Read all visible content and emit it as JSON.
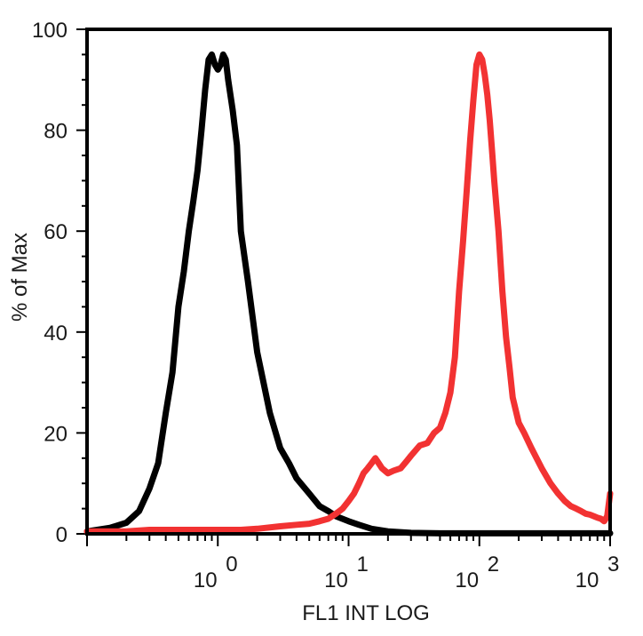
{
  "chart_data": {
    "type": "line",
    "title": "",
    "xlabel": "FL1 INT LOG",
    "ylabel": "% of Max",
    "x_scale": "log",
    "xlim": [
      0.1,
      1000
    ],
    "ylim": [
      0,
      100
    ],
    "grid": false,
    "legend": "none",
    "y_ticks": [
      0,
      20,
      40,
      60,
      80,
      100
    ],
    "x_ticks": [
      {
        "value": 1,
        "base": "10",
        "exp": "0"
      },
      {
        "value": 10,
        "base": "10",
        "exp": "1"
      },
      {
        "value": 100,
        "base": "10",
        "exp": "2"
      },
      {
        "value": 1000,
        "base": "10",
        "exp": "3"
      }
    ],
    "series": [
      {
        "color": "#000000",
        "x": [
          0.1,
          0.15,
          0.2,
          0.25,
          0.3,
          0.35,
          0.4,
          0.45,
          0.5,
          0.55,
          0.6,
          0.65,
          0.7,
          0.75,
          0.8,
          0.85,
          0.9,
          0.95,
          1.0,
          1.05,
          1.1,
          1.15,
          1.2,
          1.3,
          1.4,
          1.5,
          1.7,
          2.0,
          2.5,
          3.0,
          3.5,
          4.0,
          5.0,
          6.0,
          7.0,
          8.0,
          10.0,
          12.0,
          15.0,
          20.0,
          30.0,
          50.0,
          100.0,
          1000.0
        ],
        "y": [
          0.5,
          1.2,
          2.2,
          4.5,
          9.0,
          14.0,
          24.0,
          32.0,
          45.0,
          52.0,
          60.0,
          66.0,
          72.0,
          80.0,
          88.0,
          94.0,
          95.0,
          93.0,
          92.0,
          93.0,
          95.0,
          94.0,
          90.0,
          84.0,
          77.0,
          60.0,
          50.0,
          36.0,
          24.0,
          17.0,
          14.0,
          11.0,
          8.0,
          5.5,
          4.5,
          3.5,
          2.5,
          1.8,
          1.0,
          0.5,
          0.2,
          0.1,
          0.1,
          0.1
        ]
      },
      {
        "color": "#f23232",
        "x": [
          0.1,
          0.2,
          0.3,
          0.5,
          0.7,
          1.0,
          1.5,
          2.0,
          3.0,
          4.0,
          5.0,
          6.0,
          7.0,
          8.0,
          9.0,
          10.0,
          11.0,
          12.0,
          13.0,
          14.0,
          15.0,
          16.0,
          17.0,
          18.0,
          19.0,
          20.0,
          22.0,
          25.0,
          28.0,
          30.0,
          35.0,
          40.0,
          45.0,
          50.0,
          55.0,
          60.0,
          65.0,
          70.0,
          75.0,
          80.0,
          85.0,
          90.0,
          95.0,
          100.0,
          105.0,
          110.0,
          115.0,
          120.0,
          125.0,
          130.0,
          140.0,
          150.0,
          160.0,
          170.0,
          180.0,
          200.0,
          220.0,
          250.0,
          300.0,
          350.0,
          400.0,
          450.0,
          500.0,
          550.0,
          600.0,
          650.0,
          700.0,
          750.0,
          800.0,
          850.0,
          900.0,
          950.0,
          1000.0
        ],
        "y": [
          0.5,
          0.5,
          0.8,
          0.8,
          0.8,
          0.8,
          0.8,
          1.0,
          1.5,
          1.8,
          2.0,
          2.5,
          3.0,
          4.0,
          5.0,
          6.5,
          8.0,
          10.0,
          12.0,
          13.0,
          14.0,
          15.0,
          14.0,
          13.0,
          12.5,
          12.0,
          12.5,
          13.0,
          14.5,
          15.5,
          17.5,
          18.0,
          20.0,
          21.0,
          24.0,
          28.0,
          35.0,
          48.0,
          58.0,
          68.0,
          78.0,
          86.0,
          93.0,
          95.0,
          94.0,
          91.0,
          87.0,
          82.0,
          76.0,
          70.0,
          60.0,
          48.0,
          39.0,
          33.0,
          27.0,
          22.0,
          20.0,
          17.0,
          13.0,
          10.0,
          8.0,
          6.5,
          5.5,
          5.0,
          4.5,
          4.0,
          3.8,
          3.5,
          3.2,
          3.0,
          2.5,
          3.5,
          8.0
        ]
      }
    ]
  }
}
